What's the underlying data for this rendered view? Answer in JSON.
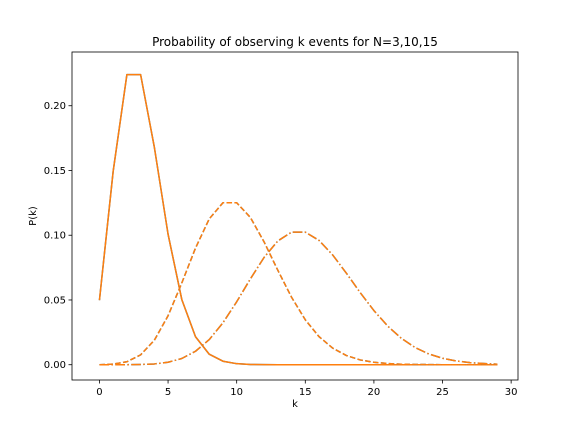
{
  "chart_data": {
    "type": "line",
    "title": "Probability of observing k events for N=3,10,15",
    "xlabel": "k",
    "ylabel": "P(k)",
    "xlim": [
      -2,
      30.5
    ],
    "ylim": [
      -0.0118,
      0.2415
    ],
    "xticks": [
      {
        "value": 0,
        "label": "0"
      },
      {
        "value": 5,
        "label": "5"
      },
      {
        "value": 10,
        "label": "10"
      },
      {
        "value": 15,
        "label": "15"
      },
      {
        "value": 20,
        "label": "20"
      },
      {
        "value": 25,
        "label": "25"
      },
      {
        "value": 30,
        "label": "30"
      }
    ],
    "yticks": [
      {
        "value": 0.0,
        "label": "0.00"
      },
      {
        "value": 0.05,
        "label": "0.05"
      },
      {
        "value": 0.1,
        "label": "0.10"
      },
      {
        "value": 0.15,
        "label": "0.15"
      },
      {
        "value": 0.2,
        "label": "0.20"
      }
    ],
    "grid": false,
    "x": [
      0,
      1,
      2,
      3,
      4,
      5,
      6,
      7,
      8,
      9,
      10,
      11,
      12,
      13,
      14,
      15,
      16,
      17,
      18,
      19,
      20,
      21,
      22,
      23,
      24,
      25,
      26,
      27,
      28,
      29
    ],
    "series": [
      {
        "color": "#1f77b4",
        "dash": "solid",
        "values": [
          0.0498,
          0.1494,
          0.224,
          0.224,
          0.168,
          0.1008,
          0.0504,
          0.0216,
          0.0081,
          0.0027,
          0.0008,
          0.0002,
          0.0001,
          0,
          0,
          0,
          0,
          0,
          0,
          0,
          0,
          0,
          0,
          0,
          0,
          0,
          0,
          0,
          0,
          0
        ]
      },
      {
        "color": "#ff7f0e",
        "dash": "solid",
        "values": [
          0.0498,
          0.1494,
          0.224,
          0.224,
          0.168,
          0.1008,
          0.0504,
          0.0216,
          0.0081,
          0.0027,
          0.0008,
          0.0002,
          0.0001,
          0,
          0,
          0,
          0,
          0,
          0,
          0,
          0,
          0,
          0,
          0,
          0,
          0,
          0,
          0,
          0,
          0
        ]
      },
      {
        "color": "#1f77b4",
        "dash": "dashed",
        "values": [
          0.0,
          0.0005,
          0.0023,
          0.0076,
          0.0189,
          0.0378,
          0.0631,
          0.0901,
          0.1126,
          0.1251,
          0.1251,
          0.1137,
          0.0948,
          0.0729,
          0.0521,
          0.0347,
          0.0217,
          0.0128,
          0.0071,
          0.0037,
          0.0019,
          0.0009,
          0.0004,
          0.0002,
          0.0001,
          0,
          0,
          0,
          0,
          0
        ]
      },
      {
        "color": "#ff7f0e",
        "dash": "dashed",
        "values": [
          0.0,
          0.0005,
          0.0023,
          0.0076,
          0.0189,
          0.0378,
          0.0631,
          0.0901,
          0.1126,
          0.1251,
          0.1251,
          0.1137,
          0.0948,
          0.0729,
          0.0521,
          0.0347,
          0.0217,
          0.0128,
          0.0071,
          0.0037,
          0.0019,
          0.0009,
          0.0004,
          0.0002,
          0.0001,
          0,
          0,
          0,
          0,
          0
        ]
      },
      {
        "color": "#1f77b4",
        "dash": "dashdot",
        "values": [
          0.0,
          0.0,
          0.0,
          0.0002,
          0.0006,
          0.0019,
          0.0048,
          0.0104,
          0.0194,
          0.0324,
          0.0486,
          0.0663,
          0.0829,
          0.0956,
          0.1024,
          0.1024,
          0.096,
          0.0847,
          0.0706,
          0.0557,
          0.0418,
          0.0299,
          0.0204,
          0.0133,
          0.0083,
          0.005,
          0.0029,
          0.0016,
          0.0009,
          0.0004
        ]
      },
      {
        "color": "#ff7f0e",
        "dash": "dashdot",
        "values": [
          0.0,
          0.0,
          0.0,
          0.0002,
          0.0006,
          0.0019,
          0.0048,
          0.0104,
          0.0194,
          0.0324,
          0.0486,
          0.0663,
          0.0829,
          0.0956,
          0.1024,
          0.1024,
          0.096,
          0.0847,
          0.0706,
          0.0557,
          0.0418,
          0.0299,
          0.0204,
          0.0133,
          0.0083,
          0.005,
          0.0029,
          0.0016,
          0.0009,
          0.0004
        ]
      }
    ]
  }
}
